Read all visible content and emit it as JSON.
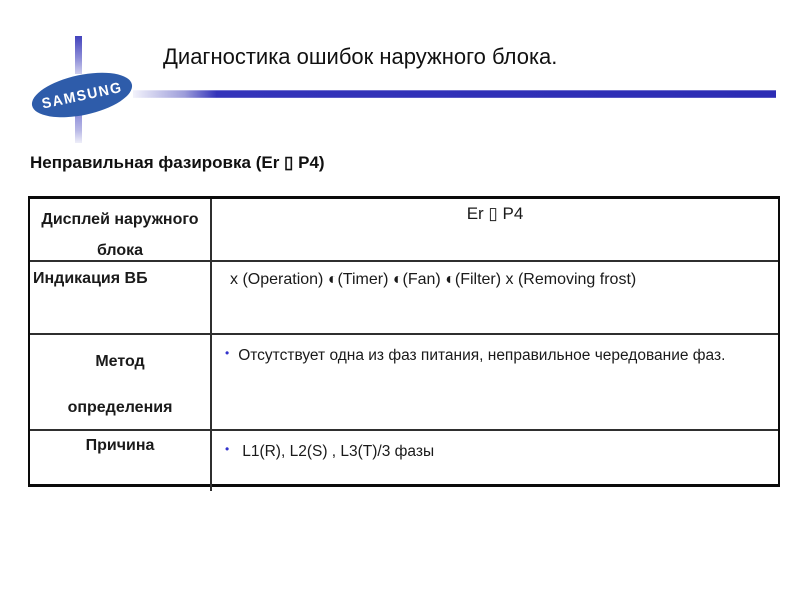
{
  "slide": {
    "title": "Диагностика ошибок наружного блока.",
    "subtitle": "Неправильная фазировка (Er ▯ P4)",
    "logo_text": "SAMSUNG"
  },
  "colors": {
    "logo_blue": "#2e5caa",
    "divider_blue": "#2c2cb4",
    "bullet_blue": "#3333cc",
    "border_dark": "#0a0a0a"
  },
  "table": {
    "rows": [
      {
        "label": "Дисплей наружного\nблока",
        "value": "Er ▯ P4"
      },
      {
        "label": "Индикация ВБ",
        "value": "x (Operation) ◐(Timer) ◐(Fan) ◐(Filter) x (Removing frost)"
      },
      {
        "label": "Метод\nопределения",
        "bullet": "•",
        "value": "Отсутствует одна из фаз питания, неправильное чередование фаз."
      },
      {
        "label": "Причина",
        "bullet": "•",
        "value": "L1(R), L2(S) , L3(T)/3 фазы"
      }
    ]
  }
}
